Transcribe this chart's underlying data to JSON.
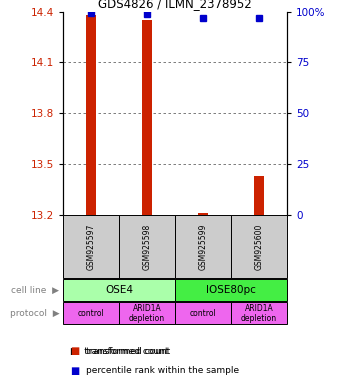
{
  "title": "GDS4826 / ILMN_2378952",
  "samples": [
    "GSM925597",
    "GSM925598",
    "GSM925599",
    "GSM925600"
  ],
  "red_values": [
    14.38,
    14.35,
    13.21,
    13.43
  ],
  "blue_values": [
    99.5,
    99.0,
    97.0,
    97.0
  ],
  "ylim_left": [
    13.2,
    14.4
  ],
  "ylim_right": [
    0,
    100
  ],
  "left_ticks": [
    13.2,
    13.5,
    13.8,
    14.1,
    14.4
  ],
  "right_ticks": [
    0,
    25,
    50,
    75,
    100
  ],
  "right_tick_labels": [
    "0",
    "25",
    "50",
    "75",
    "100%"
  ],
  "cell_line_labels": [
    "OSE4",
    "IOSE80pc"
  ],
  "cell_line_spans": [
    [
      0,
      2
    ],
    [
      2,
      4
    ]
  ],
  "cell_line_colors": [
    "#aaffaa",
    "#44ee44"
  ],
  "protocol_labels": [
    "control",
    "ARID1A\ndepletion",
    "control",
    "ARID1A\ndepletion"
  ],
  "protocol_color": "#ee66ee",
  "gsm_box_color": "#cccccc",
  "bar_color": "#cc2200",
  "dot_color": "#0000cc",
  "grid_color": "#666666",
  "left_tick_color": "#cc2200",
  "right_tick_color": "#0000cc",
  "bar_width": 0.18
}
